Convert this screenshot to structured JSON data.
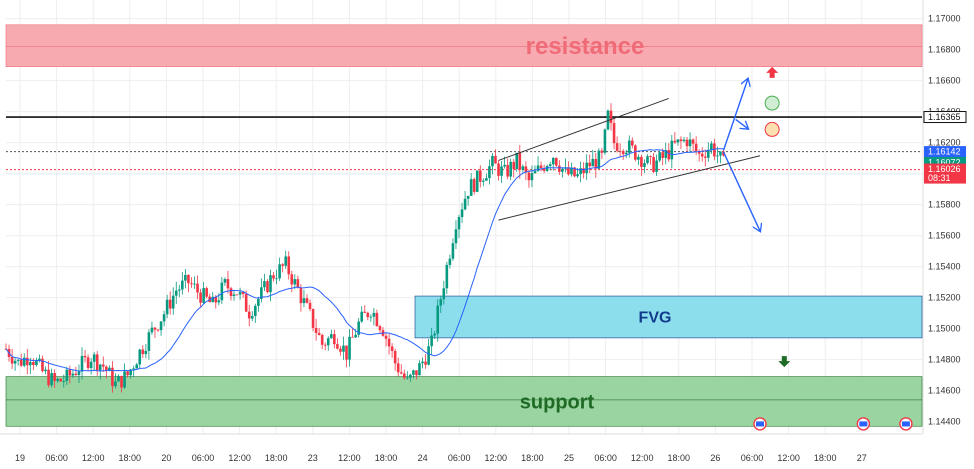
{
  "chart_data": {
    "type": "candlestick",
    "title": "",
    "y_axis": {
      "min": 1.1432,
      "max": 1.1712,
      "ticks": [
        "1.17000",
        "1.16800",
        "1.16600",
        "1.16400",
        "1.16200",
        "1.16000",
        "1.15800",
        "1.15600",
        "1.15400",
        "1.15200",
        "1.15000",
        "1.14800",
        "1.14600",
        "1.14400"
      ]
    },
    "x_axis": {
      "ticks": [
        "19",
        "06:00",
        "12:00",
        "18:00",
        "20",
        "06:00",
        "12:00",
        "18:00",
        "23",
        "12:00",
        "18:00",
        "24",
        "06:00",
        "12:00",
        "18:00",
        "25",
        "06:00",
        "12:00",
        "18:00",
        "26",
        "06:00",
        "12:00",
        "18:00",
        "27"
      ]
    },
    "zones": [
      {
        "name": "resistance",
        "label": "resistance",
        "low": 1.1669,
        "high": 1.1696,
        "mid": 1.1682,
        "color": "#f7a7ad",
        "text_color": "#f06b78"
      },
      {
        "name": "fvg",
        "label": "FVG",
        "low": 1.1494,
        "high": 1.1521,
        "color": "#86dceb",
        "text_color": "#123a8c"
      },
      {
        "name": "support",
        "label": "support",
        "low": 1.1437,
        "high": 1.1469,
        "mid": 1.1454,
        "color": "#95d39c",
        "text_color": "#1f6b26"
      }
    ],
    "horizontal_lines": [
      {
        "name": "key-level",
        "value": 1.16365,
        "label": "1.16365",
        "style": "solid",
        "color": "#111111"
      },
      {
        "name": "price-line-1",
        "value": 1.16142,
        "label": "1.16142",
        "style": "dotted",
        "color": "#555555"
      },
      {
        "name": "price-line-2",
        "value": 1.16026,
        "label": "1.16026",
        "style": "dotted",
        "color": "#f23645"
      }
    ],
    "price_tags": [
      {
        "label": "1.16365",
        "value": 1.16365,
        "bg": "#ffffff",
        "fg": "#111111",
        "border": "#111111"
      },
      {
        "label": "1.16142",
        "value": 1.16142,
        "bg": "#2962ff",
        "fg": "#ffffff"
      },
      {
        "label": "1.16072",
        "value": 1.16072,
        "bg": "#089981",
        "fg": "#ffffff"
      },
      {
        "label": "1.16026",
        "value": 1.16026,
        "bg": "#f23645",
        "fg": "#ffffff",
        "sub": "08:31"
      }
    ],
    "colors": {
      "up": "#089981",
      "down": "#f23645",
      "ma": "#2962ff",
      "channel": "#333333",
      "arrows": "#2962ff",
      "grid": "#eeeeee"
    },
    "close_path": [
      [
        0,
        1.1487
      ],
      [
        2,
        1.1478
      ],
      [
        4,
        1.1483
      ],
      [
        6,
        1.1472
      ],
      [
        8,
        1.1465
      ],
      [
        10,
        1.1468
      ],
      [
        12,
        1.1475
      ],
      [
        14,
        1.1482
      ],
      [
        16,
        1.1476
      ],
      [
        18,
        1.1464
      ],
      [
        20,
        1.147
      ],
      [
        22,
        1.1485
      ],
      [
        24,
        1.1498
      ],
      [
        26,
        1.151
      ],
      [
        28,
        1.1525
      ],
      [
        30,
        1.153
      ],
      [
        32,
        1.1522
      ],
      [
        34,
        1.1515
      ],
      [
        36,
        1.1528
      ],
      [
        38,
        1.1524
      ],
      [
        40,
        1.1511
      ],
      [
        42,
        1.1522
      ],
      [
        44,
        1.1535
      ],
      [
        46,
        1.1541
      ],
      [
        48,
        1.1525
      ],
      [
        50,
        1.1508
      ],
      [
        52,
        1.149
      ],
      [
        54,
        1.1496
      ],
      [
        56,
        1.1484
      ],
      [
        58,
        1.1503
      ],
      [
        60,
        1.1513
      ],
      [
        62,
        1.15
      ],
      [
        64,
        1.1478
      ],
      [
        66,
        1.1465
      ],
      [
        68,
        1.1475
      ],
      [
        70,
        1.149
      ],
      [
        72,
        1.153
      ],
      [
        74,
        1.157
      ],
      [
        76,
        1.159
      ],
      [
        78,
        1.1598
      ],
      [
        80,
        1.1606
      ],
      [
        82,
        1.16
      ],
      [
        84,
        1.1608
      ],
      [
        86,
        1.1595
      ],
      [
        88,
        1.1604
      ],
      [
        90,
        1.1612
      ],
      [
        92,
        1.16
      ],
      [
        94,
        1.1598
      ],
      [
        96,
        1.1606
      ],
      [
        98,
        1.161
      ],
      [
        99,
        1.1637
      ],
      [
        100,
        1.162
      ],
      [
        102,
        1.1618
      ],
      [
        104,
        1.1612
      ],
      [
        106,
        1.1605
      ],
      [
        108,
        1.161
      ],
      [
        110,
        1.1618
      ],
      [
        112,
        1.1622
      ],
      [
        114,
        1.1612
      ],
      [
        116,
        1.1618
      ],
      [
        118,
        1.1606
      ]
    ],
    "channel_lines": [
      {
        "from": [
          81,
          1.16085
        ],
        "to": [
          109,
          1.16485
        ]
      },
      {
        "from": [
          81,
          1.157
        ],
        "to": [
          124,
          1.16115
        ]
      }
    ],
    "projection_arrows": [
      {
        "points": [
          [
            118,
            1.1615
          ],
          [
            122,
            1.1661
          ]
        ]
      },
      {
        "points": [
          [
            120,
            1.1635
          ],
          [
            122,
            1.1629
          ]
        ]
      },
      {
        "points": [
          [
            118,
            1.1614
          ],
          [
            124,
            1.1563
          ]
        ]
      }
    ],
    "markers": [
      {
        "name": "up-marker",
        "x": 126,
        "value": 1.1665,
        "shape": "triangle-up",
        "color": "#f23645"
      },
      {
        "name": "down-marker",
        "x": 128,
        "value": 1.1479,
        "shape": "triangle-down",
        "color": "#1f6b26"
      },
      {
        "name": "green-circle",
        "x": 126,
        "value": 1.16455,
        "shape": "circle",
        "color": "#cfeed3",
        "stroke": "#4caf50"
      },
      {
        "name": "orange-circle",
        "x": 126,
        "value": 1.16285,
        "shape": "circle",
        "color": "#fde0b0",
        "stroke": "#f23645"
      }
    ],
    "event_icons": [
      {
        "x": 124,
        "value": 1.14385
      },
      {
        "x": 141,
        "value": 1.14385
      },
      {
        "x": 148,
        "value": 1.14385
      }
    ]
  }
}
